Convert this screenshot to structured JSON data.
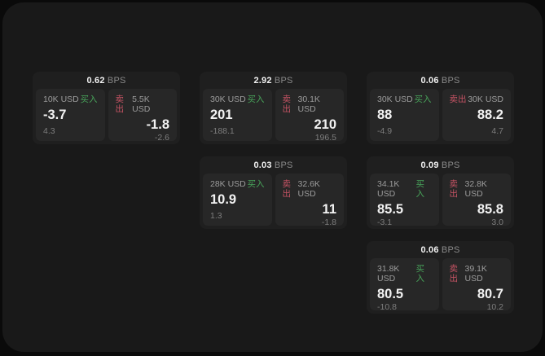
{
  "labels": {
    "buy": "买入",
    "sell": "卖出",
    "bps": "BPS"
  },
  "colors": {
    "window": "#191919",
    "card": "#1f1f1f",
    "panel": "#272727",
    "buy": "#48a35a",
    "sell": "#c65364",
    "value": "#f2f2f2",
    "label": "#9c9c9c",
    "sub": "#7d7d7d",
    "bps": "#8a8a8a"
  },
  "layout": {
    "col_lefts": [
      37,
      242,
      447
    ],
    "row_tops": [
      85,
      189,
      293
    ]
  },
  "cards": [
    {
      "col": 1,
      "row": 1,
      "bps": "0.62",
      "buy": {
        "size": "10K USD",
        "value": "-3.7",
        "sub": "4.3"
      },
      "sell": {
        "size": "5.5K USD",
        "value": "-1.8",
        "sub": "-2.6"
      }
    },
    {
      "col": 2,
      "row": 1,
      "bps": "2.92",
      "buy": {
        "size": "30K USD",
        "value": "201",
        "sub": "-188.1"
      },
      "sell": {
        "size": "30.1K USD",
        "value": "210",
        "sub": "196.5"
      }
    },
    {
      "col": 3,
      "row": 1,
      "bps": "0.06",
      "buy": {
        "size": "30K USD",
        "value": "88",
        "sub": "-4.9"
      },
      "sell": {
        "size": "30K USD",
        "value": "88.2",
        "sub": "4.7"
      }
    },
    {
      "col": 2,
      "row": 2,
      "bps": "0.03",
      "buy": {
        "size": "28K USD",
        "value": "10.9",
        "sub": "1.3"
      },
      "sell": {
        "size": "32.6K USD",
        "value": "11",
        "sub": "-1.8"
      }
    },
    {
      "col": 3,
      "row": 2,
      "bps": "0.09",
      "buy": {
        "size": "34.1K USD",
        "value": "85.5",
        "sub": "-3.1"
      },
      "sell": {
        "size": "32.8K USD",
        "value": "85.8",
        "sub": "3.0"
      }
    },
    {
      "col": 3,
      "row": 3,
      "bps": "0.06",
      "buy": {
        "size": "31.8K USD",
        "value": "80.5",
        "sub": "-10.8"
      },
      "sell": {
        "size": "39.1K USD",
        "value": "80.7",
        "sub": "10.2"
      }
    }
  ]
}
